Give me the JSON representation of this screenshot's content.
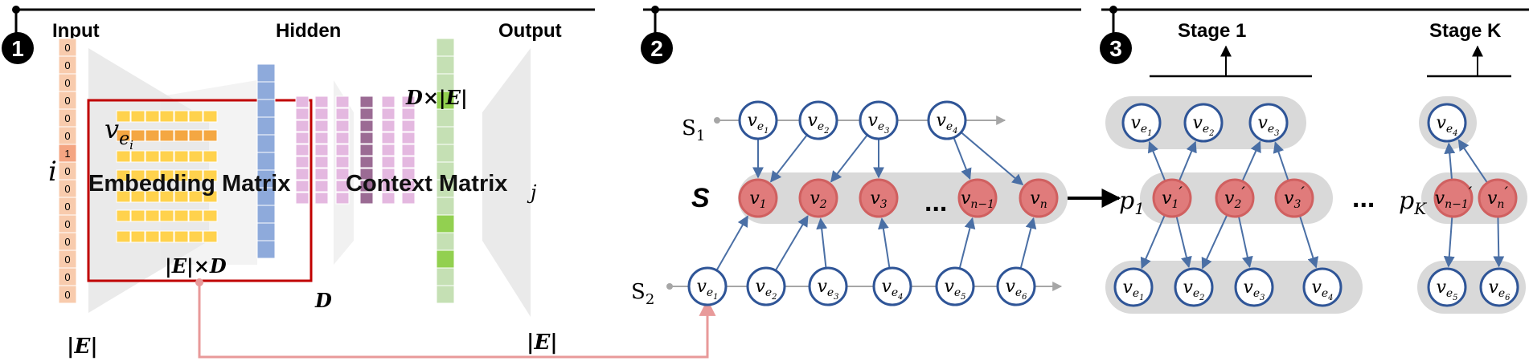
{
  "panel1": {
    "badge": "1",
    "input_label": "Input",
    "hidden_label": "Hidden",
    "output_label": "Output",
    "input_vector": [
      "0",
      "0",
      "0",
      "0",
      "0",
      "0",
      "1",
      "0",
      "0",
      "0",
      "0",
      "0",
      "0",
      "0",
      "0"
    ],
    "node_label_i": "i",
    "node_label_j": "j",
    "size_E_left": "|E|",
    "size_E_right": "|E|",
    "size_D": "D",
    "embedding_label": "Embedding Matrix",
    "embedding_dims": "|E|×D",
    "embedding_row_label": "v",
    "embedding_row_sub": "e",
    "embedding_row_subsub": "i",
    "context_label": "Context Matrix",
    "context_dims": "D×|E|"
  },
  "panel2": {
    "badge": "2",
    "s1": "S",
    "s1_sub": "1",
    "s2": "S",
    "s2_sub": "2",
    "s_label": "S",
    "ellipsis": "...",
    "s1_nodes": [
      {
        "base": "v",
        "sub": "e",
        "subsub": "1"
      },
      {
        "base": "v",
        "sub": "e",
        "subsub": "2"
      },
      {
        "base": "v",
        "sub": "e",
        "subsub": "3"
      },
      {
        "base": "v",
        "sub": "e",
        "subsub": "4"
      }
    ],
    "s_nodes": [
      {
        "base": "v",
        "sub": "1"
      },
      {
        "base": "v",
        "sub": "2"
      },
      {
        "base": "v",
        "sub": "3"
      },
      {
        "base": "v",
        "sub": "n−1"
      },
      {
        "base": "v",
        "sub": "n"
      }
    ],
    "s2_nodes": [
      {
        "base": "v",
        "sub": "e",
        "subsub": "1"
      },
      {
        "base": "v",
        "sub": "e",
        "subsub": "2"
      },
      {
        "base": "v",
        "sub": "e",
        "subsub": "3"
      },
      {
        "base": "v",
        "sub": "e",
        "subsub": "4"
      },
      {
        "base": "v",
        "sub": "e",
        "subsub": "5"
      },
      {
        "base": "v",
        "sub": "e",
        "subsub": "6"
      }
    ]
  },
  "panel3": {
    "badge": "3",
    "stage1_label": "Stage 1",
    "stageK_label": "Stage K",
    "p1": "p",
    "p1_sub": "1",
    "pK": "p",
    "pK_sub": "K",
    "ellipsis": "...",
    "stage1_top": [
      {
        "base": "v",
        "sub": "e",
        "subsub": "1"
      },
      {
        "base": "v",
        "sub": "e",
        "subsub": "2"
      },
      {
        "base": "v",
        "sub": "e",
        "subsub": "3"
      }
    ],
    "stage1_mid": [
      {
        "base": "v",
        "sub": "1",
        "prime": "′"
      },
      {
        "base": "v",
        "sub": "2",
        "prime": "′"
      },
      {
        "base": "v",
        "sub": "3",
        "prime": "′"
      }
    ],
    "stage1_bot": [
      {
        "base": "v",
        "sub": "e",
        "subsub": "1"
      },
      {
        "base": "v",
        "sub": "e",
        "subsub": "2"
      },
      {
        "base": "v",
        "sub": "e",
        "subsub": "3"
      },
      {
        "base": "v",
        "sub": "e",
        "subsub": "4"
      }
    ],
    "stageK_top": [
      {
        "base": "v",
        "sub": "e",
        "subsub": "4"
      }
    ],
    "stageK_mid": [
      {
        "base": "v",
        "sub": "n−1",
        "prime": "′"
      },
      {
        "base": "v",
        "sub": "n",
        "prime": "′"
      }
    ],
    "stageK_bot": [
      {
        "base": "v",
        "sub": "e",
        "subsub": "5"
      },
      {
        "base": "v",
        "sub": "e",
        "subsub": "6"
      }
    ]
  },
  "colors": {
    "node_stroke": "#2f5597",
    "arrow": "#4a6fa5",
    "pink_node": "#e07b7b",
    "pink_node_stroke": "#d06060",
    "pill": "#d9d9d9",
    "input_col": "#f8cbad",
    "input_hot": "#f4a582",
    "embed_rows": "#ffd24d",
    "embed_hot": "#f4a742",
    "hidden_col": "#8eaadb",
    "context_cols": "#e4b8e0",
    "context_hot": "#9b6b94",
    "output_col": "#c5e0b4",
    "output_hot": "#92d050",
    "highlight_box": "#c00000",
    "link_arrow": "#e89a9a"
  }
}
